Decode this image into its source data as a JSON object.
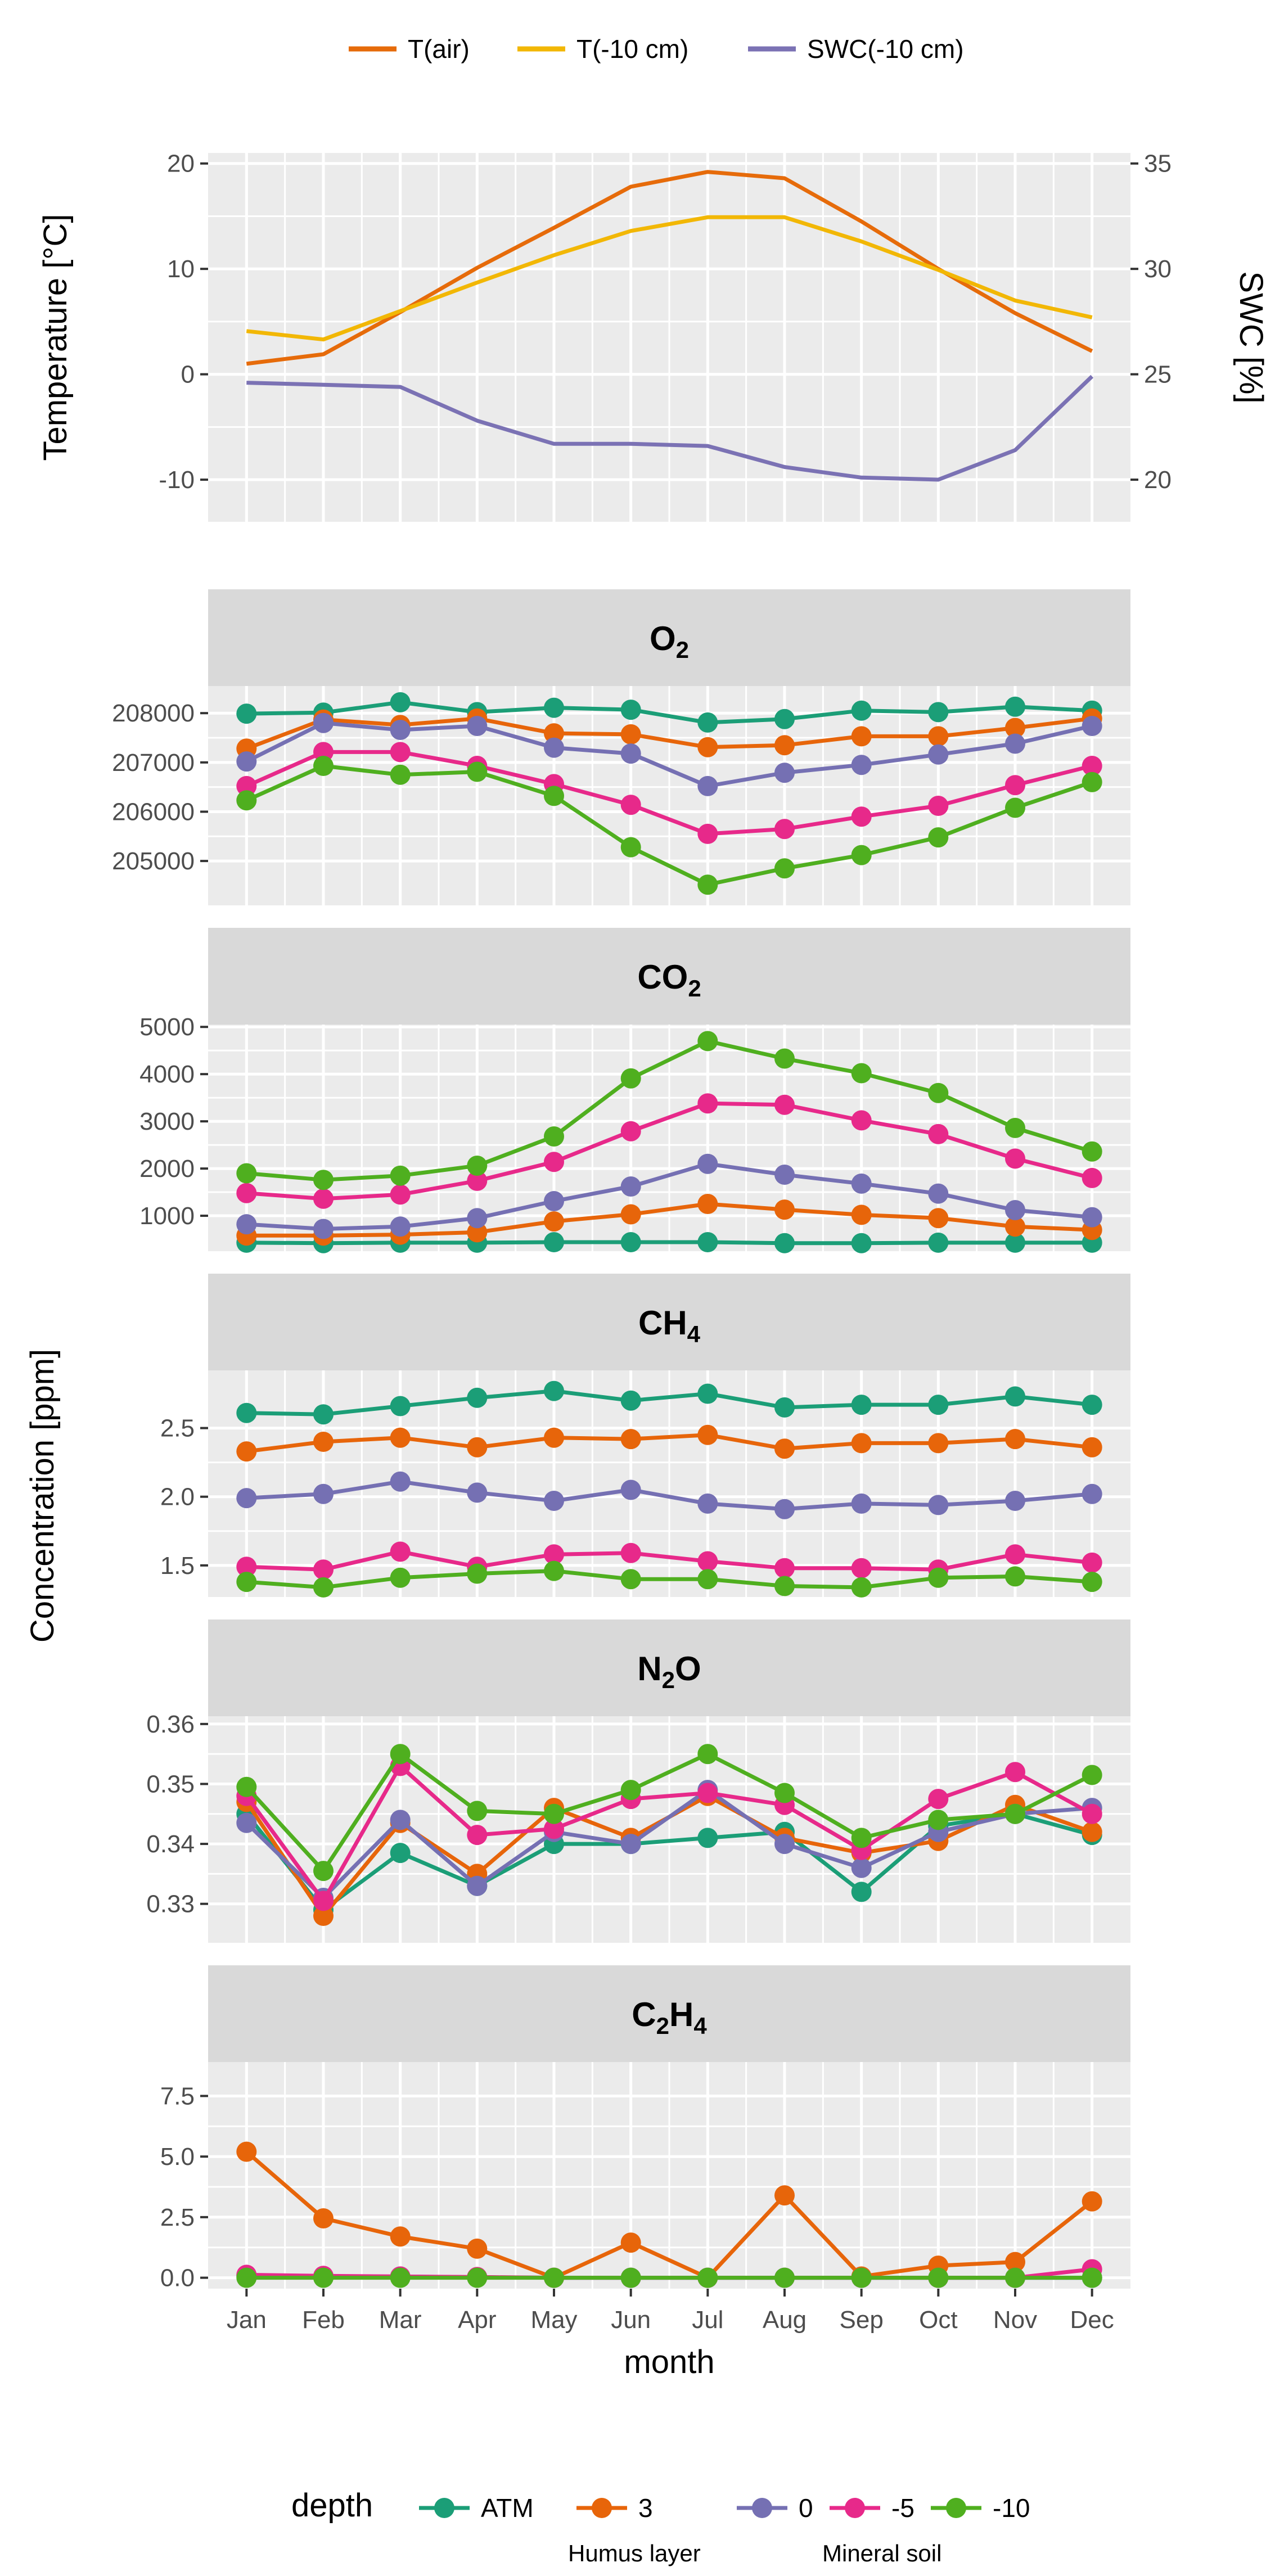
{
  "chart_data": [
    {
      "type": "line",
      "x": [
        "Jan",
        "Feb",
        "Mar",
        "Apr",
        "May",
        "Jun",
        "Jul",
        "Aug",
        "Sep",
        "Oct",
        "Nov",
        "Dec"
      ],
      "ylabel": "Temperature  [°C]",
      "y2label": "SWC [%]",
      "ylim": [
        -14,
        21
      ],
      "y_ticks": [
        -10,
        0,
        10,
        20
      ],
      "y2lim": [
        18,
        35.5
      ],
      "y2_ticks": [
        20,
        25,
        30,
        35
      ],
      "grid": true,
      "legend": "top",
      "series": [
        {
          "name": "T(air)",
          "axis": "left",
          "color": "#E66B0A",
          "values": [
            1.0,
            1.9,
            5.9,
            10.1,
            13.9,
            17.8,
            19.2,
            18.6,
            14.5,
            10.0,
            5.8,
            2.2
          ]
        },
        {
          "name": "T(-10 cm)",
          "axis": "left",
          "color": "#F2B705",
          "values": [
            4.1,
            3.3,
            6.0,
            8.7,
            11.3,
            13.6,
            14.9,
            14.9,
            12.6,
            9.9,
            7.0,
            5.4
          ]
        },
        {
          "name": "SWC(-10 cm)",
          "axis": "right",
          "color": "#7B72B4",
          "values": [
            24.6,
            24.5,
            24.4,
            22.8,
            21.7,
            21.7,
            21.6,
            20.6,
            20.1,
            20.0,
            21.4,
            24.9
          ]
        }
      ]
    },
    {
      "type": "line",
      "title": "O2",
      "x": [
        "Jan",
        "Feb",
        "Mar",
        "Apr",
        "May",
        "Jun",
        "Jul",
        "Aug",
        "Sep",
        "Oct",
        "Nov",
        "Dec"
      ],
      "ylim": [
        204100,
        208550
      ],
      "y_ticks": [
        205000,
        206000,
        207000,
        208000
      ],
      "y_tick_labels": [
        "205000",
        "206000",
        "207000",
        "208000"
      ],
      "series": [
        {
          "name": "ATM",
          "values": [
            207990,
            208010,
            208220,
            208020,
            208110,
            208070,
            207810,
            207880,
            208050,
            208020,
            208130,
            208050
          ]
        },
        {
          "name": "3",
          "values": [
            207280,
            207870,
            207760,
            207890,
            207590,
            207570,
            207310,
            207350,
            207530,
            207530,
            207700,
            207890
          ]
        },
        {
          "name": "0",
          "values": [
            207020,
            207800,
            207660,
            207740,
            207300,
            207180,
            206520,
            206790,
            206950,
            207160,
            207380,
            207740
          ]
        },
        {
          "name": "-5",
          "values": [
            206520,
            207210,
            207210,
            206930,
            206560,
            206140,
            205550,
            205650,
            205900,
            206120,
            206540,
            206930
          ]
        },
        {
          "name": "-10",
          "values": [
            206230,
            206930,
            206750,
            206810,
            206320,
            205280,
            204520,
            204850,
            205120,
            205480,
            206080,
            206600
          ]
        }
      ]
    },
    {
      "type": "line",
      "title": "CO2",
      "x": [
        "Jan",
        "Feb",
        "Mar",
        "Apr",
        "May",
        "Jun",
        "Jul",
        "Aug",
        "Sep",
        "Oct",
        "Nov",
        "Dec"
      ],
      "ylim": [
        250,
        5050
      ],
      "y_ticks": [
        1000,
        2000,
        3000,
        4000,
        5000
      ],
      "y_tick_labels": [
        "1000",
        "2000",
        "3000",
        "4000",
        "5000"
      ],
      "series": [
        {
          "name": "ATM",
          "values": [
            430,
            420,
            430,
            430,
            440,
            440,
            440,
            420,
            420,
            430,
            430,
            430
          ]
        },
        {
          "name": "3",
          "values": [
            580,
            580,
            600,
            650,
            880,
            1030,
            1250,
            1130,
            1020,
            950,
            770,
            700
          ]
        },
        {
          "name": "0",
          "values": [
            820,
            720,
            770,
            950,
            1310,
            1620,
            2100,
            1870,
            1680,
            1470,
            1120,
            970
          ]
        },
        {
          "name": "-5",
          "values": [
            1480,
            1360,
            1450,
            1740,
            2140,
            2790,
            3380,
            3350,
            3020,
            2730,
            2210,
            1800
          ]
        },
        {
          "name": "-10",
          "values": [
            1900,
            1760,
            1850,
            2060,
            2680,
            3910,
            4700,
            4330,
            4020,
            3600,
            2860,
            2360
          ]
        }
      ]
    },
    {
      "type": "line",
      "title": "CH4",
      "x": [
        "Jan",
        "Feb",
        "Mar",
        "Apr",
        "May",
        "Jun",
        "Jul",
        "Aug",
        "Sep",
        "Oct",
        "Nov",
        "Dec"
      ],
      "ylim": [
        1.27,
        2.92
      ],
      "y_ticks": [
        1.5,
        2.0,
        2.5
      ],
      "y_tick_labels": [
        "1.5",
        "2.0",
        "2.5"
      ],
      "series": [
        {
          "name": "ATM",
          "values": [
            2.61,
            2.6,
            2.66,
            2.72,
            2.77,
            2.7,
            2.75,
            2.65,
            2.67,
            2.67,
            2.73,
            2.67
          ]
        },
        {
          "name": "3",
          "values": [
            2.33,
            2.4,
            2.43,
            2.36,
            2.43,
            2.42,
            2.45,
            2.35,
            2.39,
            2.39,
            2.42,
            2.36
          ]
        },
        {
          "name": "0",
          "values": [
            1.99,
            2.02,
            2.11,
            2.03,
            1.97,
            2.05,
            1.95,
            1.91,
            1.95,
            1.94,
            1.97,
            2.02
          ]
        },
        {
          "name": "-5",
          "values": [
            1.49,
            1.47,
            1.6,
            1.49,
            1.58,
            1.59,
            1.53,
            1.48,
            1.48,
            1.47,
            1.58,
            1.52
          ]
        },
        {
          "name": "-10",
          "values": [
            1.38,
            1.34,
            1.41,
            1.44,
            1.46,
            1.4,
            1.4,
            1.35,
            1.34,
            1.41,
            1.42,
            1.38
          ]
        }
      ]
    },
    {
      "type": "line",
      "title": "N2O",
      "x": [
        "Jan",
        "Feb",
        "Mar",
        "Apr",
        "May",
        "Jun",
        "Jul",
        "Aug",
        "Sep",
        "Oct",
        "Nov",
        "Dec"
      ],
      "ylim": [
        0.3235,
        0.3613
      ],
      "y_ticks": [
        0.33,
        0.34,
        0.35,
        0.36
      ],
      "y_tick_labels": [
        "0.33",
        "0.34",
        "0.35",
        "0.36"
      ],
      "series": [
        {
          "name": "ATM",
          "values": [
            0.345,
            0.329,
            0.3385,
            0.333,
            0.34,
            0.34,
            0.341,
            0.342,
            0.332,
            0.343,
            0.345,
            0.3415
          ]
        },
        {
          "name": "3",
          "values": [
            0.347,
            0.328,
            0.3435,
            0.335,
            0.346,
            0.341,
            0.348,
            0.341,
            0.3385,
            0.3405,
            0.3465,
            0.342
          ]
        },
        {
          "name": "0",
          "values": [
            0.3435,
            0.331,
            0.344,
            0.333,
            0.342,
            0.34,
            0.349,
            0.34,
            0.336,
            0.342,
            0.345,
            0.346
          ]
        },
        {
          "name": "-5",
          "values": [
            0.348,
            0.3305,
            0.353,
            0.3415,
            0.3425,
            0.3475,
            0.3485,
            0.3465,
            0.339,
            0.3475,
            0.352,
            0.345
          ]
        },
        {
          "name": "-10",
          "values": [
            0.3495,
            0.3355,
            0.355,
            0.3455,
            0.345,
            0.349,
            0.355,
            0.3485,
            0.341,
            0.344,
            0.345,
            0.3515
          ]
        }
      ]
    },
    {
      "type": "line",
      "title": "C2H4",
      "x": [
        "Jan",
        "Feb",
        "Mar",
        "Apr",
        "May",
        "Jun",
        "Jul",
        "Aug",
        "Sep",
        "Oct",
        "Nov",
        "Dec"
      ],
      "xlabel": "month",
      "ylim": [
        -0.45,
        8.9
      ],
      "y_ticks": [
        0.0,
        2.5,
        5.0,
        7.5
      ],
      "y_tick_labels": [
        "0.0",
        "2.5",
        "5.0",
        "7.5"
      ],
      "series": [
        {
          "name": "ATM",
          "values": [
            0.05,
            0.02,
            0.02,
            0.02,
            0.0,
            0.0,
            0.0,
            0.0,
            0.0,
            0.0,
            0.0,
            0.0
          ]
        },
        {
          "name": "3",
          "values": [
            5.2,
            2.45,
            1.7,
            1.2,
            0.0,
            1.45,
            0.0,
            3.4,
            0.05,
            0.5,
            0.65,
            3.15
          ]
        },
        {
          "name": "0",
          "values": [
            0.1,
            0.05,
            0.05,
            0.02,
            0.0,
            0.0,
            0.0,
            0.0,
            0.0,
            0.0,
            0.0,
            0.0
          ]
        },
        {
          "name": "-5",
          "values": [
            0.12,
            0.08,
            0.05,
            0.03,
            0.0,
            0.0,
            0.0,
            0.0,
            0.0,
            0.0,
            0.0,
            0.35
          ]
        },
        {
          "name": "-10",
          "values": [
            0.0,
            0.0,
            0.0,
            0.0,
            0.0,
            0.0,
            0.0,
            0.0,
            0.0,
            0.0,
            0.0,
            0.0
          ]
        }
      ]
    }
  ],
  "shared_ylabel": "Concentration  [ppm]",
  "gas_strip_titles": [
    {
      "main": "O",
      "sub": "2",
      "tail": ""
    },
    {
      "main": "CO",
      "sub": "2",
      "tail": ""
    },
    {
      "main": "CH",
      "sub": "4",
      "tail": ""
    },
    {
      "main": "N",
      "sub": "2",
      "tail": "O"
    },
    {
      "main": "C",
      "sub": "2",
      "tail": "H",
      "sub2": "4"
    }
  ],
  "depth_legend": {
    "title": "depth",
    "placement": "bottom",
    "entries": [
      {
        "label": "ATM",
        "color": "#1B9E77"
      },
      {
        "label": "3",
        "color": "#E7650A"
      },
      {
        "label": "0",
        "color": "#7570B3"
      },
      {
        "label": "-5",
        "color": "#E7298A"
      },
      {
        "label": "-10",
        "color": "#4FAF1F"
      }
    ],
    "group_labels": [
      "Humus layer",
      "Mineral soil"
    ]
  }
}
